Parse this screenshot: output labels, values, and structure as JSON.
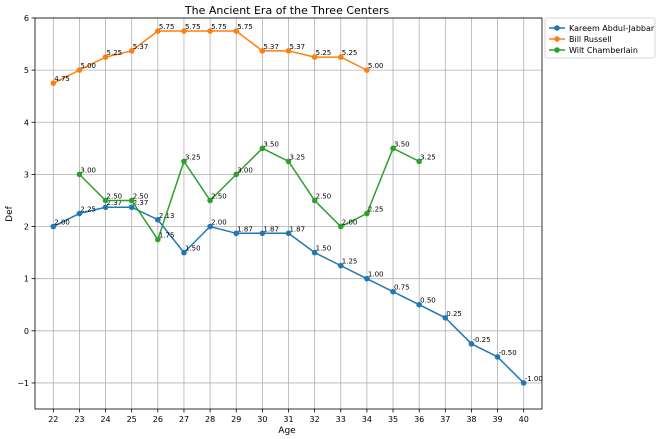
{
  "chart_data": {
    "type": "line",
    "title": "The Ancient Era of the Three Centers",
    "xlabel": "Age",
    "ylabel": "Def",
    "xlim": [
      21.3,
      40.7
    ],
    "ylim": [
      -1.5,
      6
    ],
    "xticks": [
      22,
      23,
      24,
      25,
      26,
      27,
      28,
      29,
      30,
      31,
      32,
      33,
      34,
      35,
      36,
      37,
      38,
      39,
      40
    ],
    "yticks": [
      -1,
      0,
      1,
      2,
      3,
      4,
      5,
      6
    ],
    "ytick_labels": [
      "−1",
      "0",
      "1",
      "2",
      "3",
      "4",
      "5",
      "6"
    ],
    "grid": true,
    "legend_position": "outside-top-right",
    "series": [
      {
        "name": "Kareem Abdul-Jabbar",
        "color": "#1f77b4",
        "x": [
          22,
          23,
          24,
          25,
          26,
          27,
          28,
          29,
          30,
          31,
          32,
          33,
          34,
          35,
          36,
          37,
          38,
          39,
          40
        ],
        "values": [
          2.0,
          2.25,
          2.37,
          2.37,
          2.13,
          1.5,
          2.0,
          1.87,
          1.87,
          1.87,
          1.5,
          1.25,
          1.0,
          0.75,
          0.5,
          0.25,
          -0.25,
          -0.5,
          -1.0
        ],
        "labels": [
          "2.00",
          "2.25",
          "2.37",
          "2.37",
          "2.13",
          "1.50",
          "2.00",
          "1.87",
          "1.87",
          "1.87",
          "1.50",
          "1.25",
          "1.00",
          "0.75",
          "0.50",
          "0.25",
          "-0.25",
          "-0.50",
          "-1.00"
        ]
      },
      {
        "name": "Bill Russell",
        "color": "#ff7f0e",
        "x": [
          22,
          23,
          24,
          25,
          26,
          27,
          28,
          29,
          30,
          31,
          32,
          33,
          34
        ],
        "values": [
          4.75,
          5.0,
          5.25,
          5.37,
          5.75,
          5.75,
          5.75,
          5.75,
          5.37,
          5.37,
          5.25,
          5.25,
          5.0
        ],
        "labels": [
          "4.75",
          "5.00",
          "5.25",
          "5.37",
          "5.75",
          "5.75",
          "5.75",
          "5.75",
          "5.37",
          "5.37",
          "5.25",
          "5.25",
          "5.00"
        ]
      },
      {
        "name": "Wilt Chamberlain",
        "color": "#2ca02c",
        "x": [
          23,
          24,
          25,
          26,
          27,
          28,
          29,
          30,
          31,
          32,
          33,
          34,
          35,
          36
        ],
        "values": [
          3.0,
          2.5,
          2.5,
          1.75,
          3.25,
          2.5,
          3.0,
          3.5,
          3.25,
          2.5,
          2.0,
          2.25,
          3.5,
          3.25
        ],
        "labels": [
          "3.00",
          "2.50",
          "2.50",
          "1.75",
          "3.25",
          "2.50",
          "3.00",
          "3.50",
          "3.25",
          "2.50",
          "2.00",
          "2.25",
          "3.50",
          "3.25"
        ]
      }
    ]
  }
}
